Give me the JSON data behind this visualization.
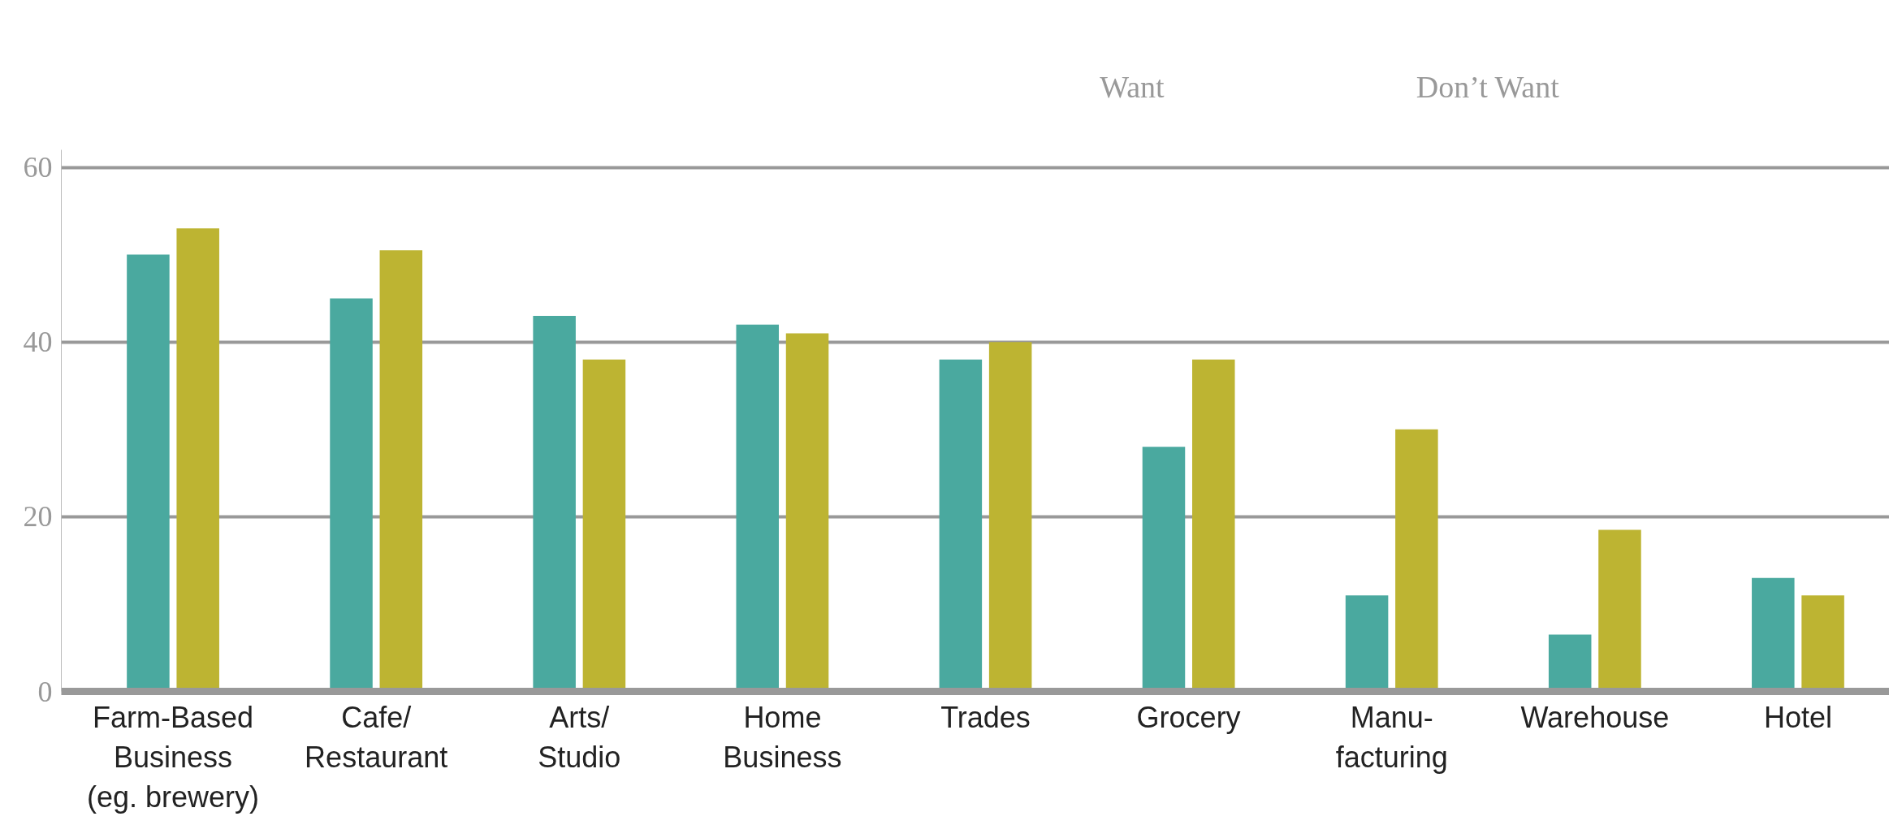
{
  "chart_data": {
    "type": "bar",
    "categories": [
      "Farm-Based\nBusiness\n(eg. brewery)",
      "Cafe/\nRestaurant",
      "Arts/\nStudio",
      "Home\nBusiness",
      "Trades",
      "Grocery",
      "Manu-\nfacturing",
      "Warehouse",
      "Hotel"
    ],
    "series": [
      {
        "color": "#4aa99f",
        "values": [
          50,
          45,
          43,
          42,
          38,
          28,
          11,
          6.5,
          13
        ]
      },
      {
        "color": "#bdb432",
        "values": [
          53,
          50.5,
          38,
          41,
          40,
          38,
          30,
          18.5,
          11
        ]
      }
    ],
    "ylim": [
      0,
      62
    ],
    "yticks": [
      0,
      20,
      40,
      60
    ],
    "grid": "y",
    "annotations": [
      "Want",
      "Don’t Want"
    ]
  }
}
